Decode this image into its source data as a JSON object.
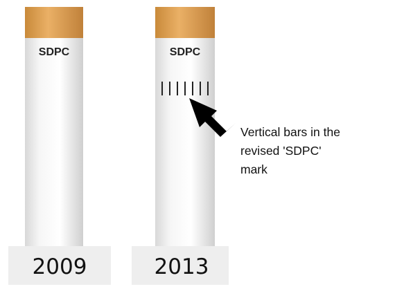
{
  "items": [
    {
      "mark": "SDPC",
      "year": "2009"
    },
    {
      "mark": "SDPC",
      "year": "2013"
    }
  ],
  "annotation": {
    "lines": [
      "Vertical bars in the",
      "revised 'SDPC'",
      "mark"
    ]
  }
}
